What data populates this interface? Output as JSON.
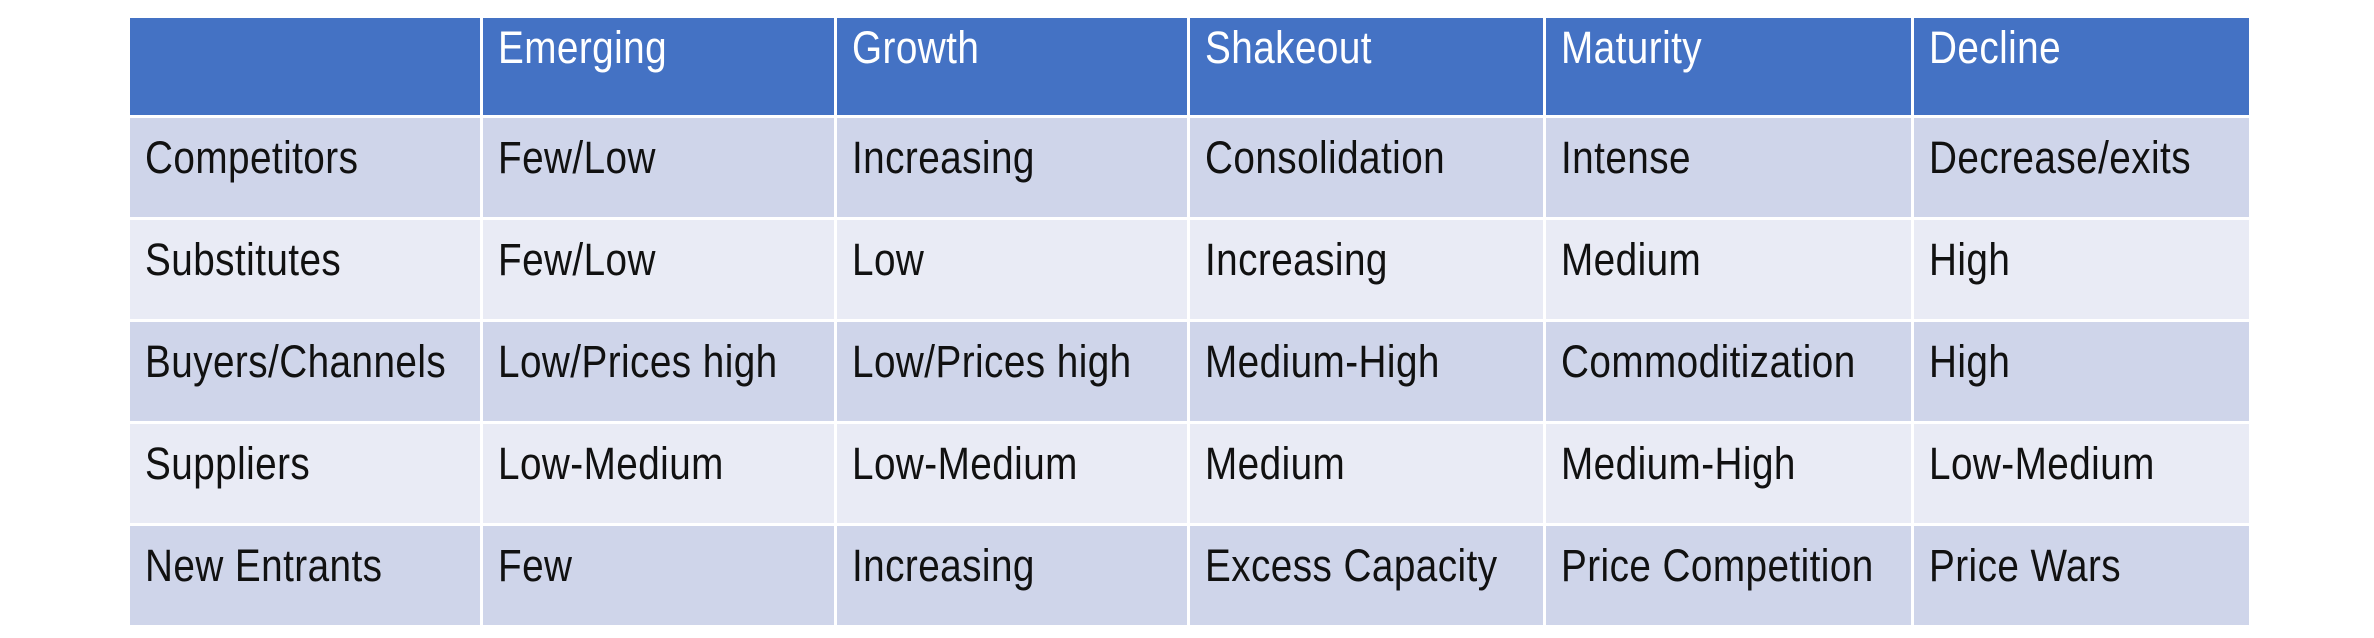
{
  "table": {
    "columns": [
      "",
      "Emerging",
      "Growth",
      "Shakeout",
      "Maturity",
      "Decline"
    ],
    "rows": [
      {
        "label": "Competitors",
        "cells": [
          "Few/Low",
          "Increasing",
          "Consolidation",
          "Intense",
          "Decrease/exits"
        ]
      },
      {
        "label": "Substitutes",
        "cells": [
          "Few/Low",
          "Low",
          "Increasing",
          "Medium",
          "High"
        ]
      },
      {
        "label": "Buyers/Channels",
        "cells": [
          "Low/Prices high",
          "Low/Prices high",
          "Medium-High",
          "Commoditization",
          "High"
        ]
      },
      {
        "label": "Suppliers",
        "cells": [
          "Low-Medium",
          "Low-Medium",
          "Medium",
          "Medium-High",
          "Low-Medium"
        ]
      },
      {
        "label": "New Entrants",
        "cells": [
          "Few",
          "Increasing",
          "Excess Capacity",
          "Price Competition",
          "Price Wars"
        ]
      }
    ],
    "colors": {
      "header_bg": "#4472c4",
      "header_text": "#ffffff",
      "row_band_dark": "#cfd5ea",
      "row_band_light": "#e9ebf5"
    }
  }
}
